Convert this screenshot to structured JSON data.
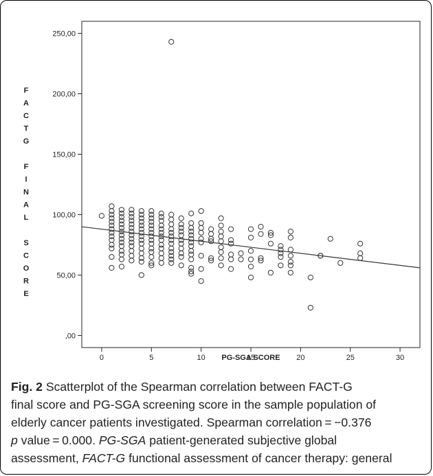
{
  "chart_data": {
    "type": "scatter",
    "xlabel": "PG-SGA SCORE",
    "ylabel": "FACTG FINAL SCORE",
    "xlim": [
      -2,
      32
    ],
    "ylim": [
      -10,
      260
    ],
    "xticks": [
      0,
      5,
      10,
      15,
      20,
      25,
      30
    ],
    "xtick_labels": [
      "0",
      "5",
      "10",
      "15",
      "20",
      "25",
      "30"
    ],
    "yticks": [
      0,
      50,
      100,
      150,
      200,
      250
    ],
    "ytick_labels": [
      ",00",
      "50,00",
      "100,00",
      "150,00",
      "200,00",
      "250,00"
    ],
    "grid": false,
    "legend": "none",
    "fit_line": {
      "x": [
        -2,
        32
      ],
      "y": [
        90,
        56
      ]
    },
    "points": [
      [
        0,
        99
      ],
      [
        1,
        107
      ],
      [
        1,
        103
      ],
      [
        1,
        100
      ],
      [
        1,
        97
      ],
      [
        1,
        94
      ],
      [
        1,
        91
      ],
      [
        1,
        88
      ],
      [
        1,
        85
      ],
      [
        1,
        82
      ],
      [
        1,
        79
      ],
      [
        1,
        75
      ],
      [
        1,
        72
      ],
      [
        1,
        65
      ],
      [
        1,
        56
      ],
      [
        2,
        104
      ],
      [
        2,
        101
      ],
      [
        2,
        98
      ],
      [
        2,
        95
      ],
      [
        2,
        92
      ],
      [
        2,
        89
      ],
      [
        2,
        86
      ],
      [
        2,
        83
      ],
      [
        2,
        80
      ],
      [
        2,
        77
      ],
      [
        2,
        74
      ],
      [
        2,
        70
      ],
      [
        2,
        67
      ],
      [
        2,
        63
      ],
      [
        2,
        57
      ],
      [
        3,
        104
      ],
      [
        3,
        101
      ],
      [
        3,
        98
      ],
      [
        3,
        95
      ],
      [
        3,
        92
      ],
      [
        3,
        89
      ],
      [
        3,
        86
      ],
      [
        3,
        83
      ],
      [
        3,
        80
      ],
      [
        3,
        77
      ],
      [
        3,
        74
      ],
      [
        3,
        70
      ],
      [
        3,
        66
      ],
      [
        3,
        62
      ],
      [
        4,
        103
      ],
      [
        4,
        100
      ],
      [
        4,
        97
      ],
      [
        4,
        94
      ],
      [
        4,
        91
      ],
      [
        4,
        88
      ],
      [
        4,
        85
      ],
      [
        4,
        82
      ],
      [
        4,
        79
      ],
      [
        4,
        76
      ],
      [
        4,
        72
      ],
      [
        4,
        68
      ],
      [
        4,
        64
      ],
      [
        4,
        61
      ],
      [
        4,
        50
      ],
      [
        5,
        103
      ],
      [
        5,
        100
      ],
      [
        5,
        97
      ],
      [
        5,
        94
      ],
      [
        5,
        91
      ],
      [
        5,
        88
      ],
      [
        5,
        85
      ],
      [
        5,
        82
      ],
      [
        5,
        79
      ],
      [
        5,
        76
      ],
      [
        5,
        72
      ],
      [
        5,
        69
      ],
      [
        5,
        65
      ],
      [
        5,
        60
      ],
      [
        5,
        58
      ],
      [
        6,
        101
      ],
      [
        6,
        98
      ],
      [
        6,
        95
      ],
      [
        6,
        91
      ],
      [
        6,
        88
      ],
      [
        6,
        85
      ],
      [
        6,
        82
      ],
      [
        6,
        79
      ],
      [
        6,
        75
      ],
      [
        6,
        72
      ],
      [
        6,
        68
      ],
      [
        6,
        64
      ],
      [
        6,
        60
      ],
      [
        7,
        100
      ],
      [
        7,
        96
      ],
      [
        7,
        92
      ],
      [
        7,
        88
      ],
      [
        7,
        85
      ],
      [
        7,
        82
      ],
      [
        7,
        79
      ],
      [
        7,
        76
      ],
      [
        7,
        72
      ],
      [
        7,
        69
      ],
      [
        7,
        66
      ],
      [
        7,
        63
      ],
      [
        7,
        60
      ],
      [
        7,
        243
      ],
      [
        8,
        97
      ],
      [
        8,
        92
      ],
      [
        8,
        89
      ],
      [
        8,
        86
      ],
      [
        8,
        83
      ],
      [
        8,
        79
      ],
      [
        8,
        76
      ],
      [
        8,
        72
      ],
      [
        8,
        68
      ],
      [
        8,
        65
      ],
      [
        8,
        58
      ],
      [
        9,
        101
      ],
      [
        9,
        93
      ],
      [
        9,
        89
      ],
      [
        9,
        86
      ],
      [
        9,
        83
      ],
      [
        9,
        80
      ],
      [
        9,
        77
      ],
      [
        9,
        74
      ],
      [
        9,
        70
      ],
      [
        9,
        67
      ],
      [
        9,
        63
      ],
      [
        9,
        56
      ],
      [
        9,
        53
      ],
      [
        9,
        51
      ],
      [
        10,
        103
      ],
      [
        10,
        93
      ],
      [
        10,
        89
      ],
      [
        10,
        85
      ],
      [
        10,
        80
      ],
      [
        10,
        77
      ],
      [
        10,
        66
      ],
      [
        10,
        55
      ],
      [
        10,
        45
      ],
      [
        11,
        88
      ],
      [
        11,
        84
      ],
      [
        11,
        80
      ],
      [
        11,
        78
      ],
      [
        11,
        64
      ],
      [
        11,
        62
      ],
      [
        12,
        97
      ],
      [
        12,
        91
      ],
      [
        12,
        86
      ],
      [
        12,
        82
      ],
      [
        12,
        78
      ],
      [
        12,
        73
      ],
      [
        12,
        69
      ],
      [
        12,
        64
      ],
      [
        12,
        58
      ],
      [
        13,
        88
      ],
      [
        13,
        79
      ],
      [
        13,
        76
      ],
      [
        13,
        67
      ],
      [
        13,
        63
      ],
      [
        13,
        55
      ],
      [
        14,
        68
      ],
      [
        14,
        63
      ],
      [
        15,
        88
      ],
      [
        15,
        81
      ],
      [
        15,
        70
      ],
      [
        15,
        63
      ],
      [
        15,
        57
      ],
      [
        15,
        48
      ],
      [
        16,
        90
      ],
      [
        16,
        84
      ],
      [
        16,
        64
      ],
      [
        16,
        62
      ],
      [
        17,
        85
      ],
      [
        17,
        83
      ],
      [
        17,
        76
      ],
      [
        17,
        52
      ],
      [
        18,
        74
      ],
      [
        18,
        71
      ],
      [
        18,
        68
      ],
      [
        18,
        65
      ],
      [
        18,
        58
      ],
      [
        19,
        86
      ],
      [
        19,
        81
      ],
      [
        19,
        71
      ],
      [
        19,
        66
      ],
      [
        19,
        61
      ],
      [
        19,
        58
      ],
      [
        19,
        52
      ],
      [
        21,
        48
      ],
      [
        21,
        23
      ],
      [
        22,
        66
      ],
      [
        22,
        66
      ],
      [
        23,
        80
      ],
      [
        24,
        60
      ],
      [
        26,
        76
      ],
      [
        26,
        68
      ],
      [
        26,
        64
      ]
    ]
  },
  "caption": {
    "fig_label": "Fig. 2",
    "line1_text": "  Scatterplot of the Spearman correlation between FACT-G",
    "line2": "final score and PG-SGA screening score in the sample population of",
    "line3": "elderly cancer patients investigated. Spearman correlation = −0.376",
    "line4_em": "p",
    "line4_text": " value = 0.000. ",
    "line4_em2": "PG-SGA",
    "line4_text2": " patient-generated subjective global",
    "line5_text": "assessment, ",
    "line5_em": "FACT-G",
    "line5_text2": " functional assessment of cancer therapy: general"
  }
}
